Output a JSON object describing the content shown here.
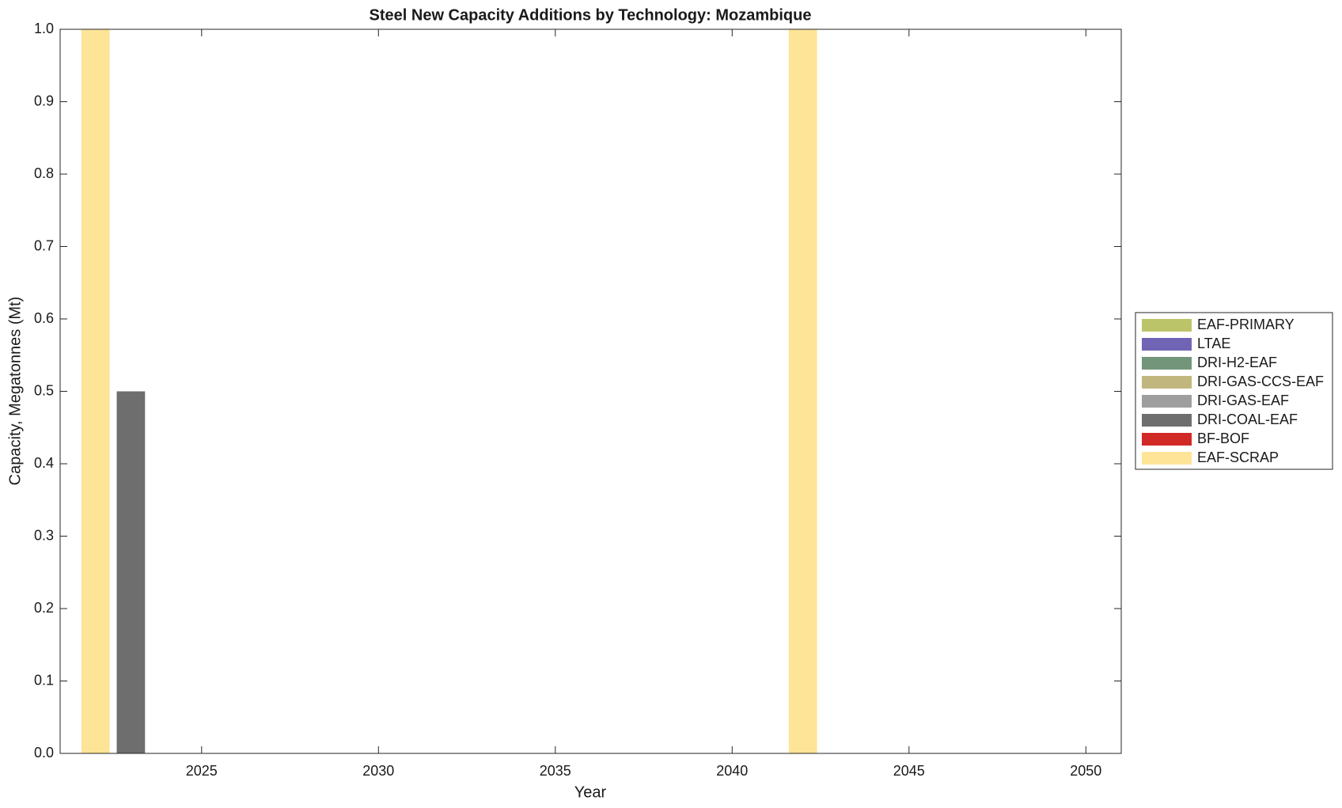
{
  "chart_data": {
    "type": "bar",
    "stacked": true,
    "title": "Steel New Capacity Additions by Technology: Mozambique",
    "xlabel": "Year",
    "ylabel": "Capacity, Megatonnes (Mt)",
    "x": [
      2022,
      2023,
      2024,
      2025,
      2026,
      2027,
      2028,
      2029,
      2030,
      2031,
      2032,
      2033,
      2034,
      2035,
      2036,
      2037,
      2038,
      2039,
      2040,
      2041,
      2042,
      2043,
      2044,
      2045,
      2046,
      2047,
      2048,
      2049,
      2050
    ],
    "series": [
      {
        "name": "EAF-PRIMARY",
        "color": "#bcc46a",
        "values": [
          0,
          0,
          0,
          0,
          0,
          0,
          0,
          0,
          0,
          0,
          0,
          0,
          0,
          0,
          0,
          0,
          0,
          0,
          0,
          0,
          0,
          0,
          0,
          0,
          0,
          0,
          0,
          0,
          0
        ]
      },
      {
        "name": "LTAE",
        "color": "#7065b5",
        "values": [
          0,
          0,
          0,
          0,
          0,
          0,
          0,
          0,
          0,
          0,
          0,
          0,
          0,
          0,
          0,
          0,
          0,
          0,
          0,
          0,
          0,
          0,
          0,
          0,
          0,
          0,
          0,
          0,
          0
        ]
      },
      {
        "name": "DRI-H2-EAF",
        "color": "#73967a",
        "values": [
          0,
          0,
          0,
          0,
          0,
          0,
          0,
          0,
          0,
          0,
          0,
          0,
          0,
          0,
          0,
          0,
          0,
          0,
          0,
          0,
          0,
          0,
          0,
          0,
          0,
          0,
          0,
          0,
          0
        ]
      },
      {
        "name": "DRI-GAS-CCS-EAF",
        "color": "#c1b77e",
        "values": [
          0,
          0,
          0,
          0,
          0,
          0,
          0,
          0,
          0,
          0,
          0,
          0,
          0,
          0,
          0,
          0,
          0,
          0,
          0,
          0,
          0,
          0,
          0,
          0,
          0,
          0,
          0,
          0,
          0
        ]
      },
      {
        "name": "DRI-GAS-EAF",
        "color": "#9e9e9e",
        "values": [
          0,
          0,
          0,
          0,
          0,
          0,
          0,
          0,
          0,
          0,
          0,
          0,
          0,
          0,
          0,
          0,
          0,
          0,
          0,
          0,
          0,
          0,
          0,
          0,
          0,
          0,
          0,
          0,
          0
        ]
      },
      {
        "name": "DRI-COAL-EAF",
        "color": "#6e6e6e",
        "values": [
          0,
          0.5,
          0,
          0,
          0,
          0,
          0,
          0,
          0,
          0,
          0,
          0,
          0,
          0,
          0,
          0,
          0,
          0,
          0,
          0,
          0,
          0,
          0,
          0,
          0,
          0,
          0,
          0,
          0
        ]
      },
      {
        "name": "BF-BOF",
        "color": "#d12a26",
        "values": [
          0,
          0,
          0,
          0,
          0,
          0,
          0,
          0,
          0,
          0,
          0,
          0,
          0,
          0,
          0,
          0,
          0,
          0,
          0,
          0,
          0,
          0,
          0,
          0,
          0,
          0,
          0,
          0,
          0
        ]
      },
      {
        "name": "EAF-SCRAP",
        "color": "#fde496",
        "values": [
          1,
          0,
          0,
          0,
          0,
          0,
          0,
          0,
          0,
          0,
          0,
          0,
          0,
          0,
          0,
          0,
          0,
          0,
          0,
          0,
          1,
          0,
          0,
          0,
          0,
          0,
          0,
          0,
          0
        ]
      }
    ],
    "xlim": [
      2021,
      2051
    ],
    "xticks": [
      2025,
      2030,
      2035,
      2040,
      2045,
      2050
    ],
    "ylim": [
      0,
      1
    ],
    "yticks": [
      {
        "value": 0,
        "label": "0.0"
      },
      {
        "value": 0.1,
        "label": "0.1"
      },
      {
        "value": 0.2,
        "label": "0.2"
      },
      {
        "value": 0.3,
        "label": "0.3"
      },
      {
        "value": 0.4,
        "label": "0.4"
      },
      {
        "value": 0.5,
        "label": "0.5"
      },
      {
        "value": 0.6,
        "label": "0.6"
      },
      {
        "value": 0.7,
        "label": "0.7"
      },
      {
        "value": 0.8,
        "label": "0.8"
      },
      {
        "value": 0.9,
        "label": "0.9"
      },
      {
        "value": 1,
        "label": "1.0"
      }
    ],
    "legend": "outside-right"
  }
}
